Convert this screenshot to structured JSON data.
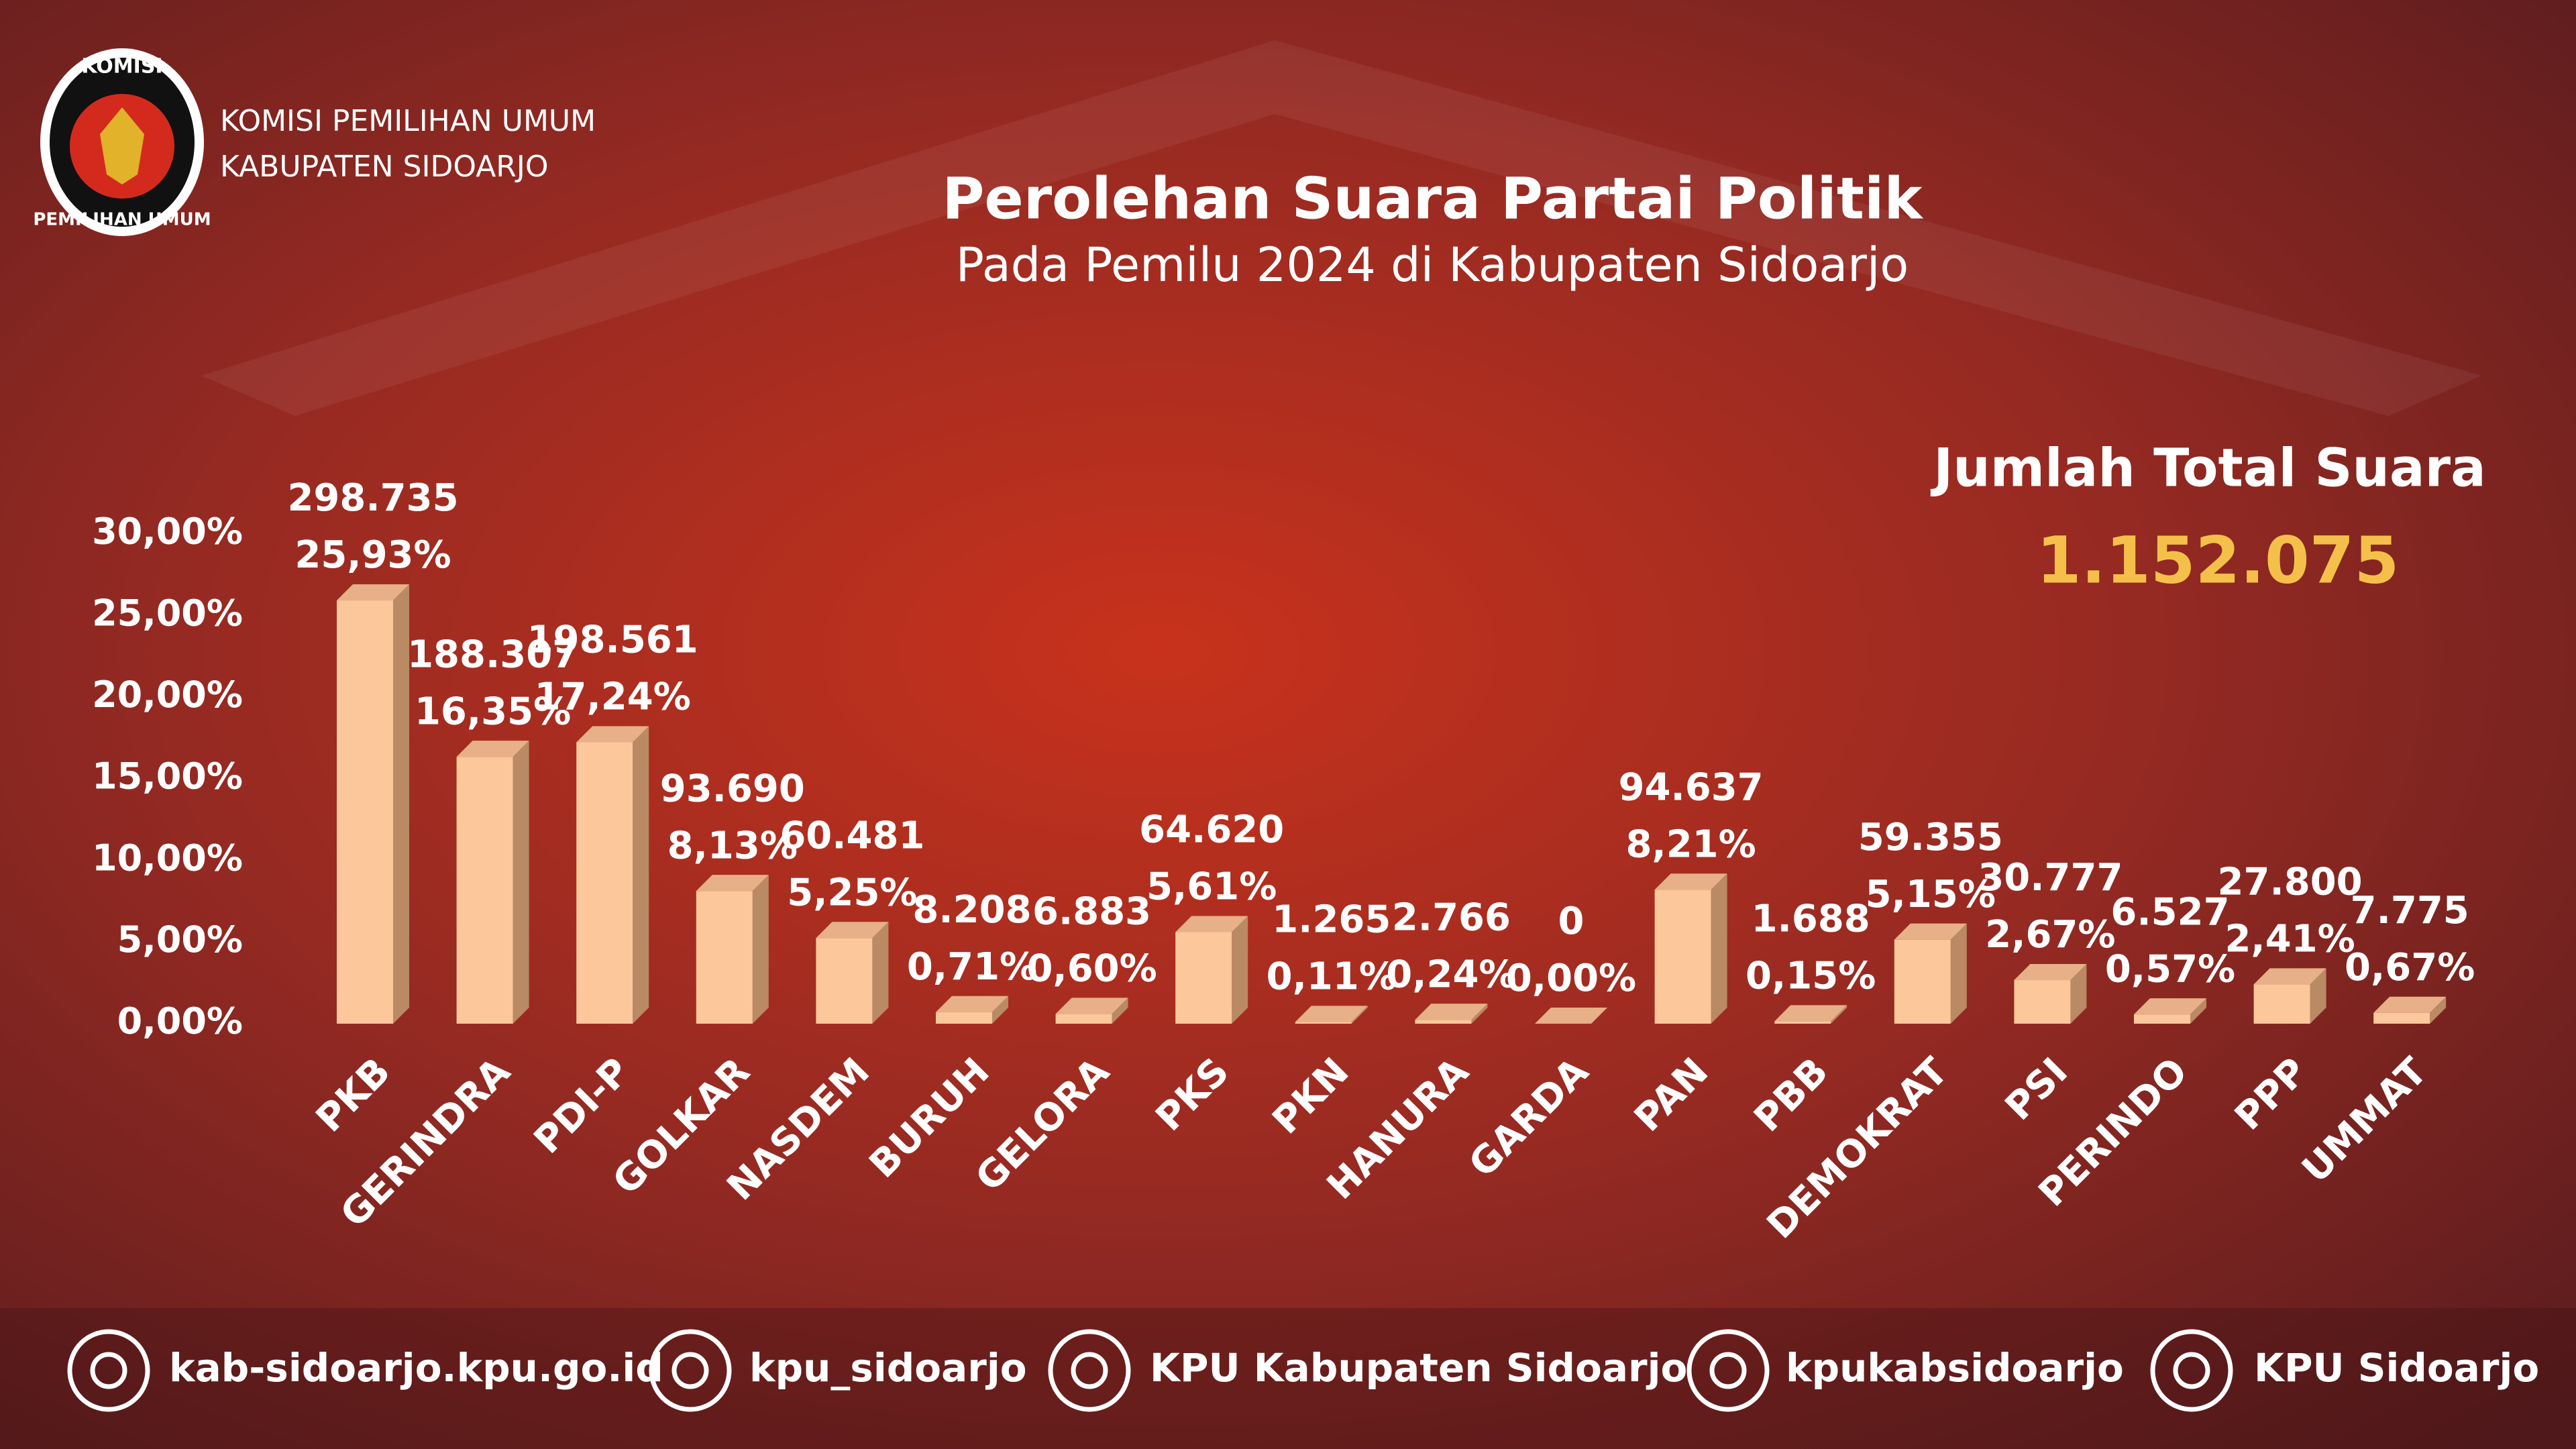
{
  "header": {
    "org_line1": "KOMISI PEMILIHAN UMUM",
    "org_line2": "KABUPATEN SIDOARJO",
    "logo_top": "KOMISI",
    "logo_bottom": "PEMILIHAN UMUM"
  },
  "total": {
    "label": "Jumlah Total Suara",
    "value": "1.152.075"
  },
  "chart_data": {
    "type": "bar3d",
    "title": "Perolehan Suara Partai Politik",
    "subtitle": "Pada Pemilu 2024 di Kabupaten Sidoarjo",
    "categories": [
      "PKB",
      "GERINDRA",
      "PDI-P",
      "GOLKAR",
      "NASDEM",
      "BURUH",
      "GELORA",
      "PKS",
      "PKN",
      "HANURA",
      "GARDA",
      "PAN",
      "PBB",
      "DEMOKRAT",
      "PSI",
      "PERINDO",
      "PPP",
      "UMMAT"
    ],
    "values": [
      25.93,
      16.35,
      17.24,
      8.13,
      5.25,
      0.71,
      0.6,
      5.61,
      0.11,
      0.24,
      0.0,
      8.21,
      0.15,
      5.15,
      2.67,
      0.57,
      2.41,
      0.67
    ],
    "value_labels": [
      "25,93%",
      "16,35%",
      "17,24%",
      "8,13%",
      "5,25%",
      "0,71%",
      "0,60%",
      "5,61%",
      "0,11%",
      "0,24%",
      "0,00%",
      "8,21%",
      "0,15%",
      "5,15%",
      "2,67%",
      "0,57%",
      "2,41%",
      "0,67%"
    ],
    "vote_labels": [
      "298.735",
      "188.307",
      "198.561",
      "93.690",
      "60.481",
      "8.208",
      "6.883",
      "64.620",
      "1.265",
      "2.766",
      "0",
      "94.637",
      "1.688",
      "59.355",
      "30.777",
      "6.527",
      "27.800",
      "7.775"
    ],
    "color": "#fbc79b",
    "ylim": [
      0,
      30
    ],
    "yticks": [
      {
        "value": 0,
        "label": "0,00%"
      },
      {
        "value": 5,
        "label": "5,00%"
      },
      {
        "value": 10,
        "label": "10,00%"
      },
      {
        "value": 15,
        "label": "15,00%"
      },
      {
        "value": 20,
        "label": "20,00%"
      },
      {
        "value": 25,
        "label": "25,00%"
      },
      {
        "value": 30,
        "label": "30,00%"
      }
    ],
    "grid": false
  },
  "footer": [
    "kab-sidoarjo.kpu.go.id",
    "kpu_sidoarjo",
    "KPU Kabupaten Sidoarjo",
    "kpukabsidoarjo",
    "KPU Sidoarjo"
  ]
}
